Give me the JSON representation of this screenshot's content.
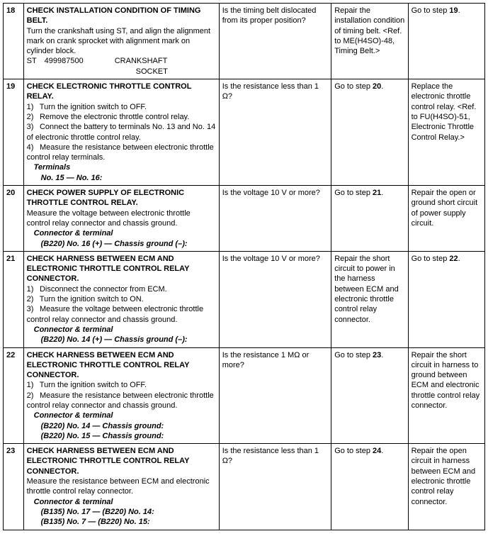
{
  "rows": [
    {
      "step": "18",
      "title": "CHECK INSTALLATION CONDITION OF TIMING BELT.",
      "body_lines": [
        {
          "t": "Turn the crankshaft using ST, and align the alignment mark on crank sprocket with alignment mark on cylinder block.",
          "cls": ""
        },
        {
          "t": "ST 499987500    CRANKSHAFT",
          "cls": ""
        },
        {
          "t": "              SOCKET",
          "cls": ""
        }
      ],
      "q": "Is the timing belt dislocated from its proper position?",
      "yes": "Repair the installation condition of timing belt. <Ref. to ME(H4SO)-48, Timing Belt.>",
      "no_pre": "Go to step ",
      "no_bold": "19",
      "no_post": "."
    },
    {
      "step": "19",
      "title": "CHECK ELECTRONIC THROTTLE CONTROL RELAY.",
      "body_lines": [
        {
          "t": "1)  Turn the ignition switch to OFF.",
          "cls": ""
        },
        {
          "t": "2)  Remove the electronic throttle control relay.",
          "cls": ""
        },
        {
          "t": "3)  Connect the battery to terminals No. 13 and No. 14 of electronic throttle control relay.",
          "cls": ""
        },
        {
          "t": "4)  Measure the resistance between electronic throttle control relay terminals.",
          "cls": ""
        },
        {
          "t": "Terminals",
          "cls": "indent1 ital"
        },
        {
          "t": "No. 15 — No. 16:",
          "cls": "indent2 ital"
        }
      ],
      "q": "Is the resistance less than 1 Ω?",
      "yes_pre": "Go to step ",
      "yes_bold": "20",
      "yes_post": ".",
      "no": "Replace the electronic throttle control relay. <Ref. to FU(H4SO)-51, Electronic Throttle Control Relay.>"
    },
    {
      "step": "20",
      "title": "CHECK POWER SUPPLY OF ELECTRONIC THROTTLE CONTROL RELAY.",
      "body_lines": [
        {
          "t": "Measure the voltage between electronic throttle control relay connector and chassis ground.",
          "cls": ""
        },
        {
          "t": "Connector & terminal",
          "cls": "indent1 ital"
        },
        {
          "t": "(B220) No. 16 (+) — Chassis ground (–):",
          "cls": "indent2 ital"
        }
      ],
      "q": "Is the voltage 10 V or more?",
      "yes_pre": "Go to step ",
      "yes_bold": "21",
      "yes_post": ".",
      "no": "Repair the open or ground short circuit of power supply circuit."
    },
    {
      "step": "21",
      "title": "CHECK HARNESS BETWEEN ECM AND ELECTRONIC THROTTLE CONTROL RELAY CONNECTOR.",
      "body_lines": [
        {
          "t": "1)  Disconnect the connector from ECM.",
          "cls": ""
        },
        {
          "t": "2)  Turn the ignition switch to ON.",
          "cls": ""
        },
        {
          "t": "3)  Measure the voltage between electronic throttle control relay connector and chassis ground.",
          "cls": ""
        },
        {
          "t": "Connector & terminal",
          "cls": "indent1 ital"
        },
        {
          "t": "(B220) No. 14 (+) — Chassis ground (–):",
          "cls": "indent2 ital"
        }
      ],
      "q": "Is the voltage 10 V or more?",
      "yes": "Repair the short circuit to power in the harness between ECM and electronic throttle control relay connector.",
      "no_pre": "Go to step ",
      "no_bold": "22",
      "no_post": "."
    },
    {
      "step": "22",
      "title": "CHECK HARNESS BETWEEN ECM AND ELECTRONIC THROTTLE CONTROL RELAY CONNECTOR.",
      "body_lines": [
        {
          "t": "1)  Turn the ignition switch to OFF.",
          "cls": ""
        },
        {
          "t": "2)  Measure the resistance between electronic throttle control relay connector and chassis ground.",
          "cls": ""
        },
        {
          "t": "Connector & terminal",
          "cls": "indent1 ital"
        },
        {
          "t": "(B220) No. 14 — Chassis ground:",
          "cls": "indent2 ital"
        },
        {
          "t": "(B220) No. 15 — Chassis ground:",
          "cls": "indent2 ital"
        }
      ],
      "q": "Is the resistance 1 MΩ or more?",
      "yes_pre": "Go to step ",
      "yes_bold": "23",
      "yes_post": ".",
      "no": "Repair the short circuit in harness to ground between ECM and electronic throttle control relay connector."
    },
    {
      "step": "23",
      "title": "CHECK HARNESS BETWEEN ECM AND ELECTRONIC THROTTLE CONTROL RELAY CONNECTOR.",
      "body_lines": [
        {
          "t": "Measure the resistance between ECM and electronic throttle control relay connector.",
          "cls": ""
        },
        {
          "t": "Connector & terminal",
          "cls": "indent1 ital"
        },
        {
          "t": "(B135) No. 17 — (B220) No. 14:",
          "cls": "indent2 ital"
        },
        {
          "t": "(B135) No. 7 — (B220) No. 15:",
          "cls": "indent2 ital"
        }
      ],
      "q": "Is the resistance less than 1 Ω?",
      "yes_pre": "Go to step ",
      "yes_bold": "24",
      "yes_post": ".",
      "no": "Repair the open circuit in harness between ECM and electronic throttle control relay connector."
    }
  ]
}
